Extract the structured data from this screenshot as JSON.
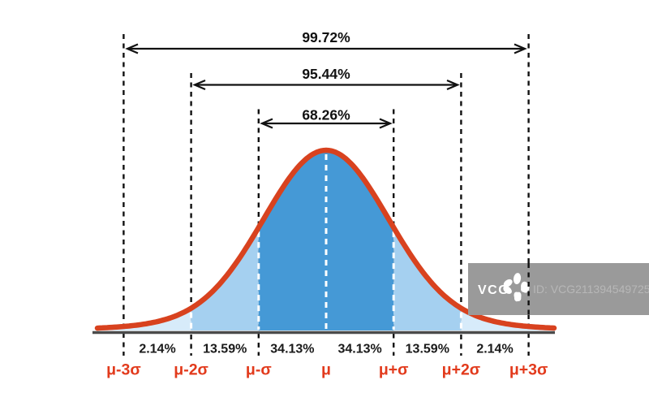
{
  "chart_data": {
    "type": "area",
    "title": "",
    "description": "Standard normal distribution bell curve with empirical-rule (68-95-99.7) coverage annotations",
    "x_tick_labels": [
      "μ-3σ",
      "μ-2σ",
      "μ-σ",
      "μ",
      "μ+σ",
      "μ+2σ",
      "μ+3σ"
    ],
    "band_percentages": [
      "2.14%",
      "13.59%",
      "34.13%",
      "34.13%",
      "13.59%",
      "2.14%"
    ],
    "band_values": [
      2.14,
      13.59,
      34.13,
      34.13,
      13.59,
      2.14
    ],
    "coverage_intervals": [
      {
        "label": "99.72%",
        "value": 99.72,
        "from": "μ-3σ",
        "to": "μ+3σ"
      },
      {
        "label": "95.44%",
        "value": 95.44,
        "from": "μ-2σ",
        "to": "μ+2σ"
      },
      {
        "label": "68.26%",
        "value": 68.26,
        "from": "μ-σ",
        "to": "μ+σ"
      }
    ],
    "legend": false,
    "grid": false,
    "colors": {
      "curve": "#d8421f",
      "fill_center": "#4599d6",
      "fill_mid": "#a5d0f0",
      "fill_outer": "#d7ebfa",
      "axis": "#4b4b4b",
      "tick_label": "#e23a1c",
      "annotation": "#111111",
      "inner_dash": "#ffffff"
    }
  },
  "watermark": {
    "logo": "VCG",
    "id_text": "ID: VCG211394549725",
    "box_color": "#9a9a9a"
  }
}
